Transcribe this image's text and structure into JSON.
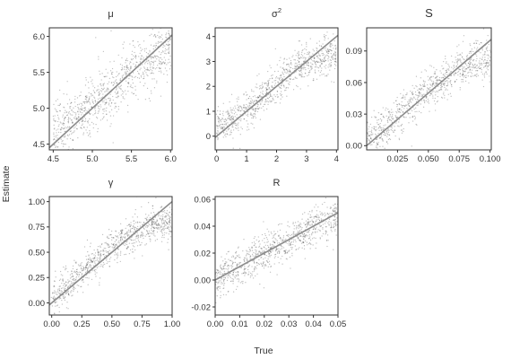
{
  "figure": {
    "xlabel": "True",
    "ylabel": "Estimate"
  },
  "chart_data": [
    {
      "type": "scatter",
      "title": "μ",
      "xlim": [
        4.45,
        6.02
      ],
      "ylim": [
        4.42,
        6.12
      ],
      "xticks": [
        4.5,
        5.0,
        5.5,
        6.0
      ],
      "xtick_labels": [
        "4.5",
        "5.0",
        "5.5",
        "6.0"
      ],
      "yticks": [
        4.5,
        5.0,
        5.5,
        6.0
      ],
      "ytick_labels": [
        "4.5",
        "5.0",
        "5.5",
        "6.0"
      ],
      "identity_line": [
        [
          4.45,
          4.45
        ],
        [
          6.02,
          6.02
        ]
      ],
      "trend": [
        [
          4.5,
          4.7
        ],
        [
          4.75,
          4.83
        ],
        [
          5.0,
          5.05
        ],
        [
          5.25,
          5.28
        ],
        [
          5.5,
          5.5
        ],
        [
          5.75,
          5.7
        ],
        [
          6.0,
          5.85
        ]
      ],
      "spread": 0.25,
      "point_count": 900,
      "grid": false
    },
    {
      "type": "scatter",
      "title": "σ",
      "title_superscript": "2",
      "xlim": [
        -0.05,
        4.05
      ],
      "ylim": [
        -0.55,
        4.35
      ],
      "xticks": [
        0,
        1,
        2,
        3,
        4
      ],
      "xtick_labels": [
        "0",
        "1",
        "2",
        "3",
        "4"
      ],
      "yticks": [
        0,
        1,
        2,
        3,
        4
      ],
      "ytick_labels": [
        "0",
        "1",
        "2",
        "3",
        "4"
      ],
      "identity_line": [
        [
          -0.05,
          -0.05
        ],
        [
          4.05,
          4.05
        ]
      ],
      "trend": [
        [
          0,
          0.4
        ],
        [
          0.5,
          0.65
        ],
        [
          1,
          1.05
        ],
        [
          1.5,
          1.55
        ],
        [
          2,
          2.1
        ],
        [
          2.5,
          2.6
        ],
        [
          3,
          3.0
        ],
        [
          3.5,
          3.2
        ],
        [
          4,
          3.3
        ]
      ],
      "spread": 0.45,
      "point_count": 900,
      "grid": false
    },
    {
      "type": "scatter",
      "title": "S",
      "xlim": [
        0.0,
        0.101
      ],
      "ylim": [
        -0.004,
        0.112
      ],
      "xticks": [
        0.025,
        0.05,
        0.075,
        0.1
      ],
      "xtick_labels": [
        "0.025",
        "0.050",
        "0.075",
        "0.100"
      ],
      "yticks": [
        0.0,
        0.03,
        0.06,
        0.09
      ],
      "ytick_labels": [
        "0.00",
        "0.03",
        "0.06",
        "0.09"
      ],
      "identity_line": [
        [
          0.0,
          0.0
        ],
        [
          0.101,
          0.101
        ]
      ],
      "trend": [
        [
          0.0,
          0.005
        ],
        [
          0.015,
          0.017
        ],
        [
          0.03,
          0.033
        ],
        [
          0.045,
          0.048
        ],
        [
          0.06,
          0.062
        ],
        [
          0.075,
          0.074
        ],
        [
          0.09,
          0.08
        ],
        [
          0.1,
          0.08
        ]
      ],
      "spread": 0.012,
      "point_count": 900,
      "grid": false
    },
    {
      "type": "scatter",
      "title": "γ",
      "xlim": [
        -0.02,
        1.0
      ],
      "ylim": [
        -0.12,
        1.05
      ],
      "xticks": [
        0.0,
        0.25,
        0.5,
        0.75,
        1.0
      ],
      "xtick_labels": [
        "0.00",
        "0.25",
        "0.50",
        "0.75",
        "1.00"
      ],
      "yticks": [
        0.0,
        0.25,
        0.5,
        0.75,
        1.0
      ],
      "ytick_labels": [
        "0.00",
        "0.25",
        "0.50",
        "0.75",
        "1.00"
      ],
      "identity_line": [
        [
          -0.02,
          -0.02
        ],
        [
          1.0,
          1.0
        ]
      ],
      "trend": [
        [
          0.0,
          0.05
        ],
        [
          0.125,
          0.16
        ],
        [
          0.25,
          0.3
        ],
        [
          0.375,
          0.43
        ],
        [
          0.5,
          0.55
        ],
        [
          0.625,
          0.65
        ],
        [
          0.75,
          0.72
        ],
        [
          0.875,
          0.78
        ],
        [
          1.0,
          0.8
        ]
      ],
      "spread": 0.11,
      "point_count": 900,
      "grid": false
    },
    {
      "type": "scatter",
      "title": "R",
      "xlim": [
        0.0,
        0.05
      ],
      "ylim": [
        -0.026,
        0.062
      ],
      "xticks": [
        0.0,
        0.01,
        0.02,
        0.03,
        0.04,
        0.05
      ],
      "xtick_labels": [
        "0.00",
        "0.01",
        "0.02",
        "0.03",
        "0.04",
        "0.05"
      ],
      "yticks": [
        -0.02,
        0.0,
        0.02,
        0.04,
        0.06
      ],
      "ytick_labels": [
        "-0.02",
        "0.00",
        "0.02",
        "0.04",
        "0.06"
      ],
      "identity_line": [
        [
          0.0,
          0.0
        ],
        [
          0.05,
          0.05
        ]
      ],
      "trend": [
        [
          0.0,
          0.0
        ],
        [
          0.0125,
          0.0125
        ],
        [
          0.025,
          0.025
        ],
        [
          0.0375,
          0.0375
        ],
        [
          0.05,
          0.049
        ]
      ],
      "spread": 0.009,
      "point_count": 900,
      "grid": false
    }
  ],
  "colors": {
    "points": "#1a1a1a",
    "identity_line": "#8c8c8c",
    "panel_border": "#333333",
    "text": "#333333"
  }
}
